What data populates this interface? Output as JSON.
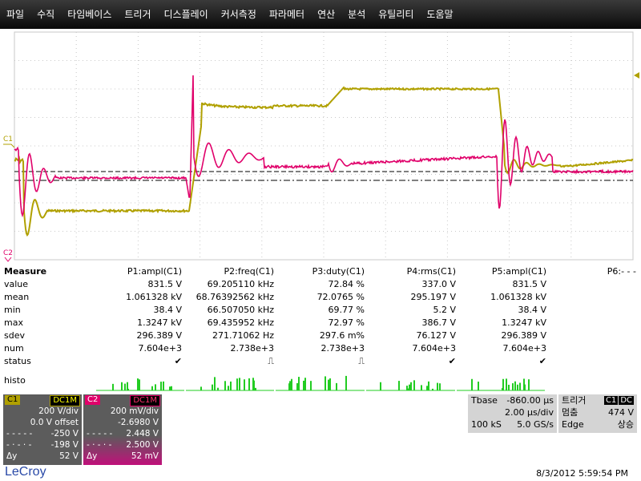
{
  "menu": [
    "파일",
    "수직",
    "타임베이스",
    "트리거",
    "디스플레이",
    "커서측정",
    "파라메터",
    "연산",
    "분석",
    "유틸리티",
    "도움말"
  ],
  "markers": {
    "c1": "C1",
    "c2": "C2"
  },
  "colors": {
    "c1": "#b0a000",
    "c2": "#e0006a",
    "grid": "#c8c8c8",
    "histo": "#22cc22"
  },
  "measure": {
    "header": {
      "label": "Measure",
      "p1": "P1:ampl(C1)",
      "p2": "P2:freq(C1)",
      "p3": "P3:duty(C1)",
      "p4": "P4:rms(C1)",
      "p5": "P5:ampl(C1)",
      "p6": "P6:- - -"
    },
    "rows": [
      {
        "label": "value",
        "p1": "831.5 V",
        "p2": "69.205110 kHz",
        "p3": "72.84 %",
        "p4": "337.0 V",
        "p5": "831.5 V"
      },
      {
        "label": "mean",
        "p1": "1.061328 kV",
        "p2": "68.76392562 kHz",
        "p3": "72.0765 %",
        "p4": "295.197 V",
        "p5": "1.061328 kV"
      },
      {
        "label": "min",
        "p1": "38.4 V",
        "p2": "66.507050 kHz",
        "p3": "69.77 %",
        "p4": "5.2 V",
        "p5": "38.4 V"
      },
      {
        "label": "max",
        "p1": "1.3247 kV",
        "p2": "69.435952 kHz",
        "p3": "72.97 %",
        "p4": "386.7 V",
        "p5": "1.3247 kV"
      },
      {
        "label": "sdev",
        "p1": "296.389 V",
        "p2": "271.71062 Hz",
        "p3": "297.6 m%",
        "p4": "76.127 V",
        "p5": "296.389 V"
      },
      {
        "label": "num",
        "p1": "7.604e+3",
        "p2": "2.738e+3",
        "p3": "2.738e+3",
        "p4": "7.604e+3",
        "p5": "7.604e+3"
      }
    ],
    "status_label": "status",
    "status": {
      "p1": "✔",
      "p2": "⎍",
      "p3": "⎍",
      "p4": "✔",
      "p5": "✔"
    },
    "histo_label": "histo"
  },
  "ch1": {
    "tag": "C1",
    "coupling": "DC1M",
    "vdiv": "200 V/div",
    "offset": "0.0 V offset",
    "cur1": "-250 V",
    "cur2": "-198 V",
    "dy_label": "Δy",
    "dy": "52 V"
  },
  "ch2": {
    "tag": "C2",
    "coupling": "DC1M",
    "vdiv": "200 mV/div",
    "offset": "-2.6980 V",
    "cur1": "2.448 V",
    "cur2": "2.500 V",
    "dy_label": "Δy",
    "dy": "52 mV"
  },
  "timebase": {
    "label": "Tbase",
    "value": "-860.00 µs",
    "div": "2.00 µs/div",
    "samples": "100 kS",
    "rate": "5.0 GS/s"
  },
  "trigger": {
    "label": "트리거",
    "tag": "C1",
    "coupling": "DC",
    "mode": "멈춤",
    "level": "474 V",
    "type": "Edge",
    "slope": "상승"
  },
  "brand": "LeCroy",
  "datetime": "8/3/2012 5:59:54 PM"
}
